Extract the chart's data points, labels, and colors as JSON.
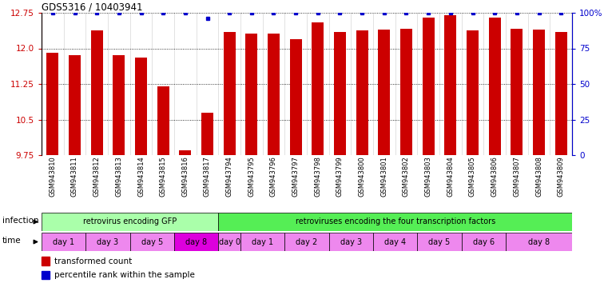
{
  "title": "GDS5316 / 10403941",
  "samples": [
    "GSM943810",
    "GSM943811",
    "GSM943812",
    "GSM943813",
    "GSM943814",
    "GSM943815",
    "GSM943816",
    "GSM943817",
    "GSM943794",
    "GSM943795",
    "GSM943796",
    "GSM943797",
    "GSM943798",
    "GSM943799",
    "GSM943800",
    "GSM943801",
    "GSM943802",
    "GSM943803",
    "GSM943804",
    "GSM943805",
    "GSM943806",
    "GSM943807",
    "GSM943808",
    "GSM943809"
  ],
  "bar_values": [
    11.9,
    11.85,
    12.38,
    11.85,
    11.8,
    11.2,
    9.85,
    10.65,
    12.35,
    12.32,
    12.32,
    12.2,
    12.55,
    12.35,
    12.38,
    12.4,
    12.42,
    12.65,
    12.7,
    12.38,
    12.65,
    12.42,
    12.4,
    12.35
  ],
  "percentile_values": [
    100,
    100,
    100,
    100,
    100,
    100,
    100,
    96,
    100,
    100,
    100,
    100,
    100,
    100,
    100,
    100,
    100,
    100,
    100,
    100,
    100,
    100,
    100,
    100
  ],
  "bar_color": "#cc0000",
  "percentile_color": "#0000cc",
  "ylim_left": [
    9.75,
    12.75
  ],
  "yticks_left": [
    9.75,
    10.5,
    11.25,
    12.0,
    12.75
  ],
  "ylim_right": [
    0,
    100
  ],
  "yticks_right": [
    0,
    25,
    50,
    75,
    100
  ],
  "ytick_labels_right": [
    "0",
    "25",
    "50",
    "75",
    "100%"
  ],
  "infection_groups": [
    {
      "label": "retrovirus encoding GFP",
      "start": 0,
      "end": 8,
      "color": "#aaffaa"
    },
    {
      "label": "retroviruses encoding the four transcription factors",
      "start": 8,
      "end": 24,
      "color": "#55ee55"
    }
  ],
  "time_groups": [
    {
      "label": "day 1",
      "start": 0,
      "end": 2,
      "color": "#ee88ee"
    },
    {
      "label": "day 3",
      "start": 2,
      "end": 4,
      "color": "#ee88ee"
    },
    {
      "label": "day 5",
      "start": 4,
      "end": 6,
      "color": "#ee88ee"
    },
    {
      "label": "day 8",
      "start": 6,
      "end": 8,
      "color": "#dd00dd"
    },
    {
      "label": "day 0",
      "start": 8,
      "end": 9,
      "color": "#ee88ee"
    },
    {
      "label": "day 1",
      "start": 9,
      "end": 11,
      "color": "#ee88ee"
    },
    {
      "label": "day 2",
      "start": 11,
      "end": 13,
      "color": "#ee88ee"
    },
    {
      "label": "day 3",
      "start": 13,
      "end": 15,
      "color": "#ee88ee"
    },
    {
      "label": "day 4",
      "start": 15,
      "end": 17,
      "color": "#ee88ee"
    },
    {
      "label": "day 5",
      "start": 17,
      "end": 19,
      "color": "#ee88ee"
    },
    {
      "label": "day 6",
      "start": 19,
      "end": 21,
      "color": "#ee88ee"
    },
    {
      "label": "day 8",
      "start": 21,
      "end": 24,
      "color": "#ee88ee"
    }
  ],
  "legend_items": [
    {
      "label": "transformed count",
      "color": "#cc0000"
    },
    {
      "label": "percentile rank within the sample",
      "color": "#0000cc"
    }
  ],
  "bg_color": "#ffffff",
  "tick_color_left": "#cc0000",
  "tick_color_right": "#0000cc"
}
